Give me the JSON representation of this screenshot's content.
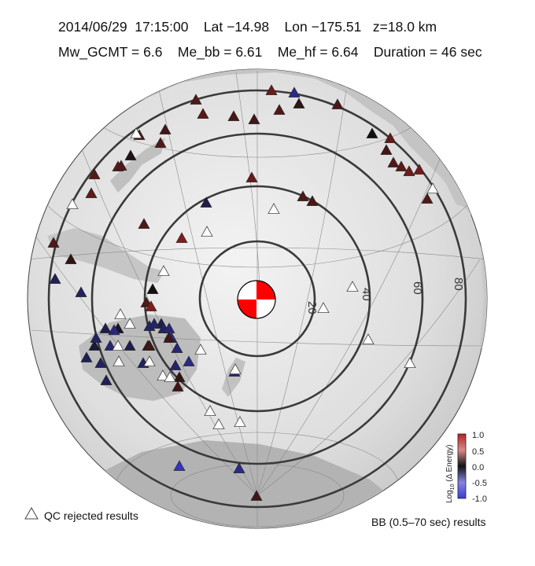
{
  "header": {
    "line1": "2014/06/29  17:15:00    Lat −14.98    Lon −175.51   z=18.0 km",
    "line2": "Mw_GCMT = 6.6    Me_bb = 6.61    Me_hf = 6.64    Duration = 46 sec"
  },
  "map": {
    "projection": "azimuthal-equidistant",
    "center": {
      "lat": -14.98,
      "lon": -175.51
    },
    "distance_rings_deg": [
      20,
      40,
      60,
      80
    ],
    "ring_labels": [
      "20",
      "40",
      "60",
      "80"
    ],
    "focal_mechanism": {
      "colors": [
        "#ff0000",
        "#ffffff"
      ]
    }
  },
  "colorbar": {
    "title": "Log10 (Δ Energy)",
    "title_main": "Log",
    "title_sub": "10",
    "title_tail": " (Δ Energy)",
    "ticks": [
      "1.0",
      "0.5",
      "0.0",
      "-0.5",
      "-1.0"
    ],
    "range": [
      -1.0,
      1.0
    ],
    "colors": {
      "high": "#b22222",
      "mid": "#111111",
      "low": "#3b3bd6"
    }
  },
  "legend": {
    "qc_rejected": "QC rejected results",
    "bb_results": "BB (0.5–70 sec) results"
  },
  "stations": [
    {
      "v": 0.4
    },
    {
      "v": 0.45
    },
    {
      "v": 0.55
    },
    {
      "v": -0.6
    },
    {
      "v": 0.35
    },
    {
      "v": 0.3
    },
    {
      "v": 0.4
    },
    {
      "v": 0.2
    },
    {
      "v": 0.35
    },
    {
      "v": 0.3
    },
    {
      "v": 0.4
    },
    {
      "v": 0.35
    },
    {
      "v": 0.1
    },
    {
      "v": 0.5
    },
    {
      "v": 0.4
    },
    {
      "v": 0.45
    },
    {
      "v": 0.5
    },
    {
      "v": 0.55
    },
    {
      "v": 0.4
    },
    {
      "v": 0.35
    },
    {
      "v": 0.0
    },
    {
      "v": 0.5
    },
    {
      "v": 0.3
    },
    {
      "v": 0.4
    },
    {
      "v": 0.45
    },
    {
      "v": 0.6
    },
    {
      "v": 0.6
    },
    {
      "v": 0.4
    },
    {
      "v": 0.4
    },
    {
      "v": 0.7
    },
    {
      "v": -0.3
    },
    {
      "v": 0.4
    },
    {
      "v": 0.2
    },
    {
      "v": -0.35
    },
    {
      "v": 0.0
    },
    {
      "v": -0.4
    },
    {
      "v": 0.4
    },
    {
      "v": 0.7
    },
    {
      "v": -0.3
    },
    {
      "v": -0.2
    },
    {
      "v": -0.1
    },
    {
      "v": -0.3
    },
    {
      "v": -0.35
    },
    {
      "v": -0.4
    },
    {
      "v": 0.2
    },
    {
      "v": -0.5
    },
    {
      "v": -0.3
    },
    {
      "v": -0.5
    },
    {
      "v": -0.4
    },
    {
      "v": -0.35
    },
    {
      "v": -0.45
    },
    {
      "v": 0.3
    },
    {
      "v": -0.5
    },
    {
      "v": -0.55
    },
    {
      "v": -0.4
    },
    {
      "v": -0.5
    },
    {
      "v": -0.55
    },
    {
      "v": -0.4
    },
    {
      "v": -0.45
    },
    {
      "v": 0.2
    },
    {
      "v": -0.45
    },
    {
      "v": -0.7
    },
    {
      "v": -0.85
    },
    {
      "v": -0.6
    },
    {
      "v": 0.3
    },
    {
      "v": 0.3
    },
    {
      "v": -0.6
    },
    {
      "v": 0.3
    }
  ],
  "qc_rejected_count": 22
}
